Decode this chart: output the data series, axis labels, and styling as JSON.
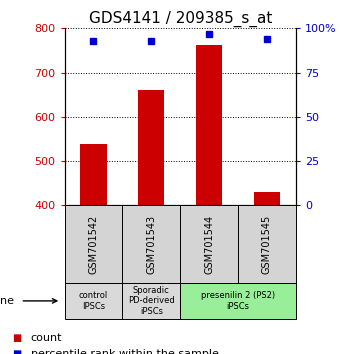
{
  "title": "GDS4141 / 209385_s_at",
  "samples": [
    "GSM701542",
    "GSM701543",
    "GSM701544",
    "GSM701545"
  ],
  "counts": [
    538,
    660,
    762,
    430
  ],
  "percentiles": [
    93,
    93,
    97,
    94
  ],
  "ylim_left": [
    400,
    800
  ],
  "ylim_right": [
    0,
    100
  ],
  "yticks_left": [
    400,
    500,
    600,
    700,
    800
  ],
  "yticks_right": [
    0,
    25,
    50,
    75,
    100
  ],
  "bar_color": "#cc0000",
  "dot_color": "#0000cc",
  "bar_bottom": 400,
  "groups": [
    {
      "label": "control\nIPSCs",
      "start": 0,
      "end": 0,
      "color": "#d9d9d9"
    },
    {
      "label": "Sporadic\nPD-derived\niPSCs",
      "start": 1,
      "end": 1,
      "color": "#d9d9d9"
    },
    {
      "label": "presenilin 2 (PS2)\niPSCs",
      "start": 2,
      "end": 3,
      "color": "#99ee99"
    }
  ],
  "title_fontsize": 11,
  "tick_fontsize": 8,
  "label_fontsize": 8,
  "background_color": "#ffffff",
  "bar_color_left": "#cc0000",
  "dot_color_right": "#0000cc",
  "ytick_right_labels": [
    "0",
    "25",
    "50",
    "75",
    "100%"
  ]
}
